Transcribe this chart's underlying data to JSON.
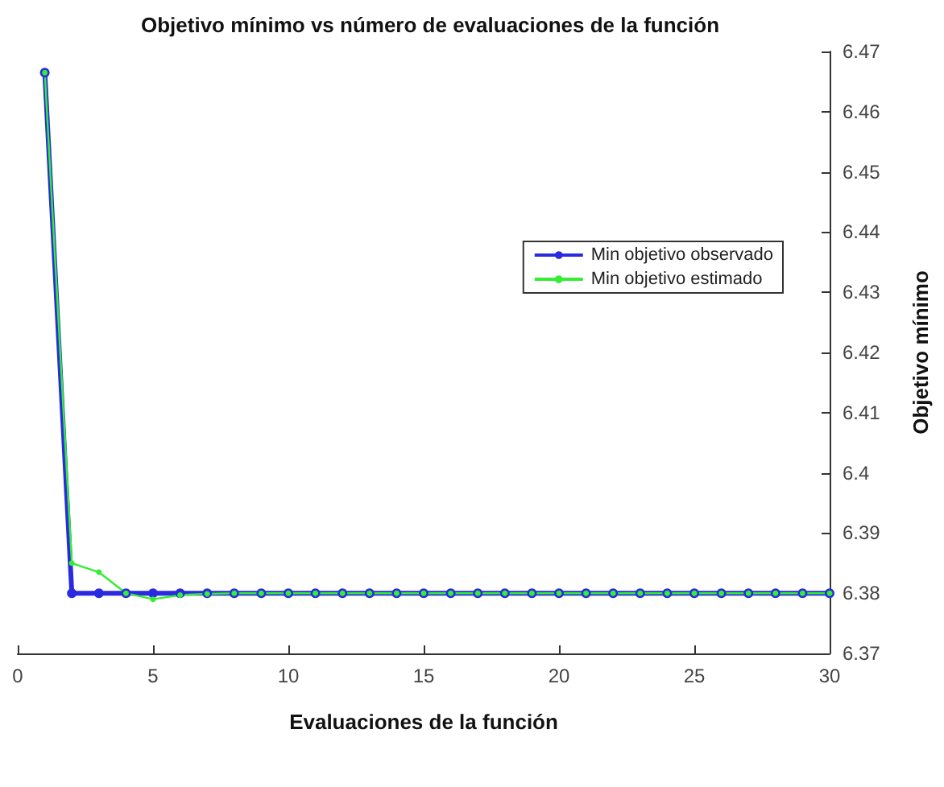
{
  "chart_data": {
    "type": "line",
    "title": "Objetivo mínimo vs número de evaluaciones de la función",
    "xlabel": "Evaluaciones de la función",
    "ylabel": "Objetivo mínimo",
    "x": [
      1,
      2,
      3,
      4,
      5,
      6,
      7,
      8,
      9,
      10,
      11,
      12,
      13,
      14,
      15,
      16,
      17,
      18,
      19,
      20,
      21,
      22,
      23,
      24,
      25,
      26,
      27,
      28,
      29,
      30
    ],
    "series": [
      {
        "name": "Min objetivo observado",
        "color": "#2a2ae0",
        "values": [
          6.4665,
          6.38,
          6.38,
          6.38,
          6.38,
          6.38,
          6.38,
          6.38,
          6.38,
          6.38,
          6.38,
          6.38,
          6.38,
          6.38,
          6.38,
          6.38,
          6.38,
          6.38,
          6.38,
          6.38,
          6.38,
          6.38,
          6.38,
          6.38,
          6.38,
          6.38,
          6.38,
          6.38,
          6.38,
          6.38
        ]
      },
      {
        "name": "Min objetivo estimado",
        "color": "#33ee33",
        "values": [
          6.4665,
          6.385,
          6.3835,
          6.38,
          6.379,
          6.3797,
          6.3799,
          6.38,
          6.38,
          6.38,
          6.38,
          6.38,
          6.38,
          6.38,
          6.38,
          6.38,
          6.38,
          6.38,
          6.38,
          6.38,
          6.38,
          6.38,
          6.38,
          6.38,
          6.38,
          6.38,
          6.38,
          6.38,
          6.38,
          6.38
        ]
      }
    ],
    "xlim": [
      0,
      30
    ],
    "xticks": [
      0,
      5,
      10,
      15,
      20,
      25,
      30
    ],
    "ylim": [
      6.37,
      6.47
    ],
    "yticks": [
      6.37,
      6.38,
      6.39,
      6.4,
      6.41,
      6.42,
      6.43,
      6.44,
      6.45,
      6.46,
      6.47
    ],
    "grid": false,
    "legend": "right",
    "marker": "circle",
    "line_style": "solid"
  }
}
